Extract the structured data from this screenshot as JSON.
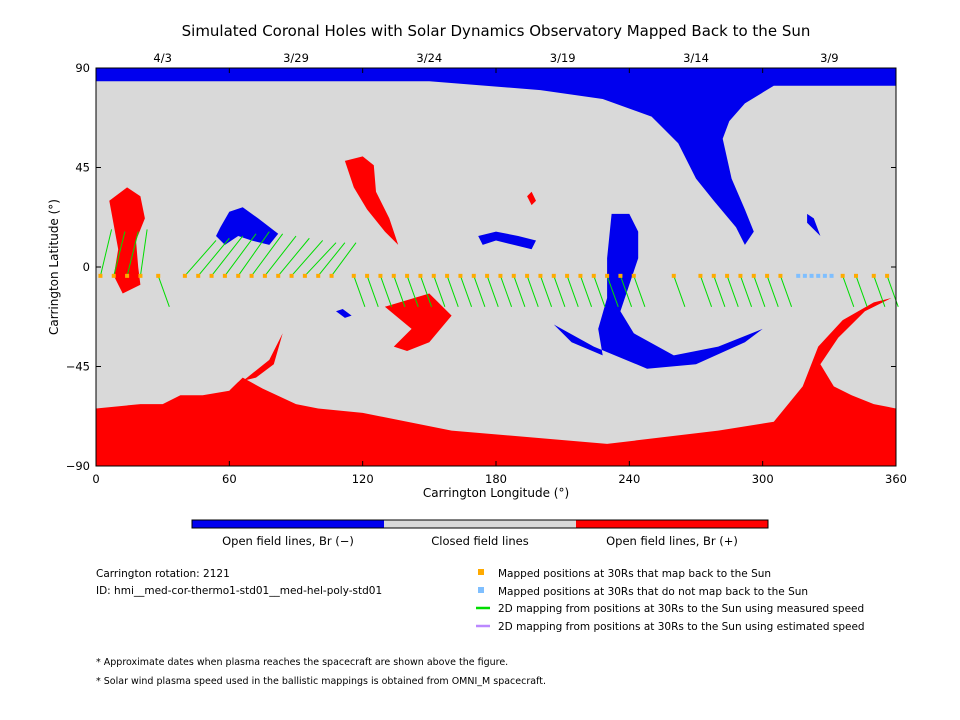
{
  "chart_data": {
    "type": "scatter",
    "title": "Simulated Coronal Holes with Solar Dynamics Observatory Mapped Back to the Sun",
    "xlabel": "Carrington Longitude (°)",
    "ylabel": "Carrington Latitude (°)",
    "xlim": [
      0,
      360
    ],
    "ylim": [
      -90,
      90
    ],
    "x_ticks": [
      "0",
      "60",
      "120",
      "180",
      "240",
      "300",
      "360"
    ],
    "y_ticks": [
      "90",
      "45",
      "0",
      "-45",
      "-90"
    ],
    "top_dates": [
      {
        "label": "4/3",
        "lon": 30
      },
      {
        "label": "3/29",
        "lon": 90
      },
      {
        "label": "3/24",
        "lon": 150
      },
      {
        "label": "3/19",
        "lon": 210
      },
      {
        "label": "3/14",
        "lon": 270
      },
      {
        "label": "3/9",
        "lon": 330
      }
    ],
    "colors": {
      "open_neg": "#0000ee",
      "closed": "#d9d9d9",
      "open_pos": "#ff0000",
      "mapped": "#ffaa00",
      "unmapped": "#7fbfff",
      "measured": "#00dd00",
      "estimated": "#bb88ff"
    },
    "regions": [
      {
        "name": "north-cap",
        "polarity": "negative",
        "points": [
          [
            0,
            90
          ],
          [
            360,
            90
          ],
          [
            360,
            82
          ],
          [
            305,
            82
          ],
          [
            292,
            74
          ],
          [
            285,
            66
          ],
          [
            282,
            58
          ],
          [
            286,
            40
          ],
          [
            292,
            26
          ],
          [
            296,
            16
          ],
          [
            292,
            10
          ],
          [
            288,
            18
          ],
          [
            278,
            30
          ],
          [
            270,
            40
          ],
          [
            262,
            56
          ],
          [
            250,
            68
          ],
          [
            228,
            76
          ],
          [
            200,
            80
          ],
          [
            150,
            84
          ],
          [
            80,
            84
          ],
          [
            0,
            84
          ]
        ]
      },
      {
        "name": "ch-neg-64",
        "polarity": "negative",
        "points": [
          [
            56,
            18
          ],
          [
            60,
            25
          ],
          [
            66,
            27
          ],
          [
            73,
            22
          ],
          [
            82,
            15
          ],
          [
            78,
            10
          ],
          [
            70,
            12
          ],
          [
            64,
            14
          ],
          [
            58,
            10
          ],
          [
            54,
            14
          ]
        ]
      },
      {
        "name": "ch-neg-mid",
        "polarity": "negative",
        "points": [
          [
            172,
            14
          ],
          [
            180,
            16
          ],
          [
            190,
            14
          ],
          [
            198,
            12
          ],
          [
            196,
            8
          ],
          [
            188,
            10
          ],
          [
            180,
            12
          ],
          [
            174,
            10
          ]
        ]
      },
      {
        "name": "ch-neg-south",
        "polarity": "negative",
        "points": [
          [
            232,
            24
          ],
          [
            240,
            24
          ],
          [
            244,
            16
          ],
          [
            244,
            4
          ],
          [
            236,
            -20
          ],
          [
            242,
            -30
          ],
          [
            260,
            -40
          ],
          [
            280,
            -36
          ],
          [
            300,
            -28
          ],
          [
            292,
            -34
          ],
          [
            270,
            -44
          ],
          [
            248,
            -46
          ],
          [
            224,
            -36
          ],
          [
            206,
            -26
          ],
          [
            214,
            -34
          ],
          [
            228,
            -40
          ],
          [
            226,
            -28
          ],
          [
            230,
            -14
          ],
          [
            230,
            4
          ]
        ]
      },
      {
        "name": "ch-neg-321",
        "polarity": "negative",
        "points": [
          [
            320,
            24
          ],
          [
            323,
            22
          ],
          [
            326,
            14
          ],
          [
            322,
            18
          ],
          [
            320,
            20
          ]
        ]
      },
      {
        "name": "ch-neg-small",
        "polarity": "negative",
        "points": [
          [
            108,
            -20
          ],
          [
            112,
            -23
          ],
          [
            115,
            -22
          ],
          [
            111,
            -19
          ]
        ]
      },
      {
        "name": "ch-pos-west",
        "polarity": "positive",
        "points": [
          [
            6,
            30
          ],
          [
            14,
            36
          ],
          [
            20,
            32
          ],
          [
            22,
            22
          ],
          [
            18,
            12
          ],
          [
            19,
            0
          ],
          [
            20,
            -8
          ],
          [
            12,
            -12
          ],
          [
            8,
            -4
          ],
          [
            10,
            8
          ]
        ]
      },
      {
        "name": "ch-pos-hook",
        "polarity": "positive",
        "points": [
          [
            112,
            48
          ],
          [
            120,
            50
          ],
          [
            125,
            46
          ],
          [
            126,
            34
          ],
          [
            132,
            22
          ],
          [
            136,
            10
          ],
          [
            130,
            16
          ],
          [
            122,
            26
          ],
          [
            116,
            36
          ]
        ]
      },
      {
        "name": "ch-pos-mid",
        "polarity": "positive",
        "points": [
          [
            130,
            -18
          ],
          [
            150,
            -12
          ],
          [
            160,
            -22
          ],
          [
            150,
            -34
          ],
          [
            140,
            -38
          ],
          [
            134,
            -36
          ],
          [
            142,
            -28
          ]
        ]
      },
      {
        "name": "ch-pos-small",
        "polarity": "positive",
        "points": [
          [
            196,
            34
          ],
          [
            198,
            30
          ],
          [
            196,
            28
          ],
          [
            194,
            32
          ]
        ]
      },
      {
        "name": "south-cap",
        "polarity": "positive",
        "points": [
          [
            0,
            -90
          ],
          [
            360,
            -90
          ],
          [
            360,
            -64
          ],
          [
            350,
            -62
          ],
          [
            340,
            -58
          ],
          [
            332,
            -54
          ],
          [
            326,
            -44
          ],
          [
            334,
            -32
          ],
          [
            346,
            -20
          ],
          [
            358,
            -14
          ],
          [
            350,
            -16
          ],
          [
            336,
            -24
          ],
          [
            325,
            -36
          ],
          [
            318,
            -54
          ],
          [
            305,
            -70
          ],
          [
            280,
            -74
          ],
          [
            230,
            -80
          ],
          [
            160,
            -74
          ],
          [
            120,
            -66
          ],
          [
            100,
            -64
          ],
          [
            90,
            -62
          ],
          [
            75,
            -55
          ],
          [
            66,
            -50
          ],
          [
            60,
            -56
          ],
          [
            48,
            -58
          ],
          [
            38,
            -58
          ],
          [
            30,
            -62
          ],
          [
            20,
            -62
          ],
          [
            0,
            -64
          ]
        ]
      },
      {
        "name": "ch-pos-sw",
        "polarity": "positive",
        "points": [
          [
            60,
            -56
          ],
          [
            68,
            -50
          ],
          [
            78,
            -42
          ],
          [
            84,
            -30
          ],
          [
            80,
            -44
          ],
          [
            72,
            -50
          ],
          [
            64,
            -52
          ]
        ]
      }
    ],
    "series": [
      {
        "name": "Mapped positions at 30Rs that map back to the Sun",
        "marker": "square",
        "lon": [
          2,
          8,
          14,
          20,
          28,
          40,
          46,
          52,
          58,
          64,
          70,
          76,
          82,
          88,
          94,
          100,
          106,
          116,
          122,
          128,
          134,
          140,
          146,
          152,
          158,
          164,
          170,
          176,
          182,
          188,
          194,
          200,
          206,
          212,
          218,
          224,
          230,
          236,
          242,
          260,
          272,
          278,
          284,
          290,
          296,
          302,
          308,
          336,
          342,
          350,
          356
        ]
      },
      {
        "name": "Mapped positions at 30Rs that do not map back to the Sun",
        "marker": "square",
        "lon": [
          316,
          319,
          322,
          325,
          328,
          331
        ]
      }
    ],
    "connections": [
      [
        2,
        17,
        5
      ],
      [
        8,
        16,
        5
      ],
      [
        14,
        16,
        5
      ],
      [
        20,
        17,
        3
      ],
      [
        28,
        -18,
        5
      ],
      [
        40,
        12,
        14
      ],
      [
        46,
        13,
        14
      ],
      [
        52,
        14,
        14
      ],
      [
        58,
        15,
        14
      ],
      [
        64,
        16,
        14
      ],
      [
        70,
        15,
        14
      ],
      [
        76,
        14,
        14
      ],
      [
        82,
        13,
        14
      ],
      [
        88,
        12,
        14
      ],
      [
        94,
        11,
        14
      ],
      [
        100,
        11,
        12
      ],
      [
        106,
        11,
        11
      ],
      [
        116,
        -18,
        5
      ],
      [
        122,
        -18,
        5
      ],
      [
        128,
        -18,
        5
      ],
      [
        134,
        -18,
        5
      ],
      [
        140,
        -18,
        5
      ],
      [
        146,
        -18,
        5
      ],
      [
        152,
        -18,
        5
      ],
      [
        158,
        -18,
        5
      ],
      [
        164,
        -18,
        5
      ],
      [
        170,
        -18,
        5
      ],
      [
        176,
        -18,
        5
      ],
      [
        182,
        -18,
        5
      ],
      [
        188,
        -18,
        5
      ],
      [
        194,
        -18,
        5
      ],
      [
        200,
        -18,
        5
      ],
      [
        206,
        -18,
        5
      ],
      [
        212,
        -18,
        5
      ],
      [
        218,
        -18,
        5
      ],
      [
        224,
        -18,
        5
      ],
      [
        230,
        -18,
        5
      ],
      [
        236,
        -18,
        5
      ],
      [
        242,
        -18,
        5
      ],
      [
        260,
        -18,
        5
      ],
      [
        272,
        -18,
        5
      ],
      [
        278,
        -18,
        5
      ],
      [
        284,
        -18,
        5
      ],
      [
        290,
        -18,
        5
      ],
      [
        296,
        -18,
        5
      ],
      [
        302,
        -18,
        5
      ],
      [
        308,
        -18,
        5
      ],
      [
        336,
        -18,
        5
      ],
      [
        342,
        -18,
        5
      ],
      [
        350,
        -18,
        5
      ],
      [
        356,
        -18,
        5
      ]
    ]
  },
  "colorbar": {
    "labels": [
      "Open field lines, Br (−)",
      "Closed field lines",
      "Open field lines, Br (+)"
    ]
  },
  "info": {
    "rotation": "Carrington rotation: 2121",
    "id": "ID: hmi__med-cor-thermo1-std01__med-hel-poly-std01"
  },
  "legend": [
    {
      "label": "Mapped positions at 30Rs that map back to the Sun",
      "kind": "square",
      "color": "#ffaa00"
    },
    {
      "label": "Mapped positions at 30Rs that do not map back to the Sun",
      "kind": "square",
      "color": "#7fbfff"
    },
    {
      "label": "2D mapping from positions at 30Rs to the Sun using measured speed",
      "kind": "line",
      "color": "#00dd00"
    },
    {
      "label": "2D mapping from positions at 30Rs to the Sun using estimated speed",
      "kind": "line",
      "color": "#bb88ff"
    }
  ],
  "notes": [
    "* Approximate dates when plasma reaches the spacecraft are shown above the figure.",
    "* Solar wind plasma speed used in the ballistic mappings is obtained from OMNI_M spacecraft."
  ]
}
